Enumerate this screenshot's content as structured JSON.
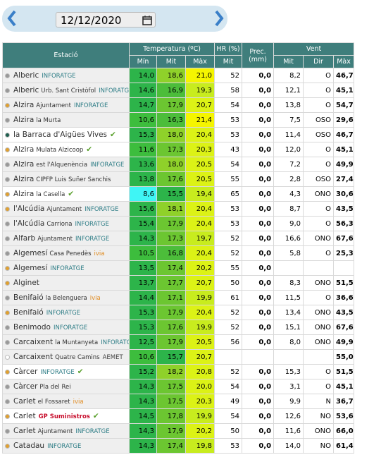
{
  "header": {
    "date": "12/12/2020"
  },
  "table": {
    "columns": [
      "Estació",
      "Temperatura (ºC)",
      "HR (%)",
      "Prec. (mm)",
      "Vent"
    ],
    "subcolumns": [
      "Mín",
      "Mit",
      "Màx",
      "Mit",
      "Mit",
      "Dir",
      "Màx"
    ],
    "rows": [
      {
        "name": "Alberic",
        "tag": "INFORATGE",
        "dot": "#999999",
        "cells": [
          "14,0",
          "18,6",
          "21,0",
          "52",
          "0,0",
          "8,2",
          "O",
          "46,7"
        ]
      },
      {
        "name": "Alberic",
        "sub": "Urb. Sant Cristòfol",
        "tag": "INFORATGE",
        "dot": "#999999",
        "cells": [
          "14,6",
          "16,9",
          "19,3",
          "58",
          "0,0",
          "12,1",
          "O",
          "45,1"
        ]
      },
      {
        "name": "Alzira",
        "sub": "Ajuntament",
        "tag": "INFORATGE",
        "dot": "#e0a030",
        "cells": [
          "14,7",
          "17,9",
          "20,7",
          "54",
          "0,0",
          "13,8",
          "O",
          "54,7"
        ]
      },
      {
        "name": "Alzira",
        "sub": "la Murta",
        "dot": "#999999",
        "cells": [
          "10,6",
          "16,3",
          "21,4",
          "53",
          "0,0",
          "7,5",
          "OSO",
          "29,6"
        ]
      },
      {
        "name": "la Barraca d'Aigües Vives",
        "check": true,
        "dot": "#1f5f4f",
        "cells": [
          "15,3",
          "18,0",
          "20,4",
          "53",
          "0,0",
          "11,4",
          "OSO",
          "46,7"
        ]
      },
      {
        "name": "Alzira",
        "sub": "Mulata Alzicoop",
        "check": true,
        "dot": "#e0a030",
        "cells": [
          "11,6",
          "17,3",
          "20,3",
          "43",
          "0,0",
          "12,0",
          "O",
          "45,1"
        ]
      },
      {
        "name": "Alzira",
        "sub": "est l'Alquenència",
        "tag": "INFORATGE",
        "dot": "#999999",
        "cells": [
          "13,6",
          "18,0",
          "20,5",
          "54",
          "0,0",
          "7,2",
          "O",
          "49,9"
        ]
      },
      {
        "name": "Alzira",
        "sub": "CIPFP Luis Suñer Sanchis",
        "dot": "#999999",
        "cells": [
          "13,8",
          "17,6",
          "20,5",
          "55",
          "0,0",
          "2,8",
          "OSO",
          "27,4"
        ]
      },
      {
        "name": "Alzira",
        "sub": "la Casella",
        "check": true,
        "dot": "#e0a030",
        "cells": [
          "8,6",
          "15,5",
          "19,4",
          "65",
          "0,0",
          "4,3",
          "ONO",
          "30,6"
        ]
      },
      {
        "name": "l'Alcúdia",
        "sub": "Ajuntament",
        "tag": "INFORATGE",
        "dot": "#e0a030",
        "cells": [
          "15,6",
          "18,1",
          "20,4",
          "53",
          "0,0",
          "8,7",
          "O",
          "43,5"
        ]
      },
      {
        "name": "l'Alcúdia",
        "sub": "Carriona",
        "tag": "INFORATGE",
        "dot": "#999999",
        "cells": [
          "15,4",
          "17,9",
          "20,4",
          "53",
          "0,0",
          "9,0",
          "O",
          "56,3"
        ]
      },
      {
        "name": "Alfarb",
        "sub": "Ajuntament",
        "tag": "INFORATGE",
        "dot": "#999999",
        "cells": [
          "14,3",
          "17,3",
          "19,7",
          "52",
          "0,0",
          "16,6",
          "ONO",
          "67,6"
        ]
      },
      {
        "name": "Algemesí",
        "sub": "Casa Penedès",
        "tag": "ivia",
        "dot": "#999999",
        "cells": [
          "10,5",
          "16,8",
          "20,4",
          "52",
          "0,0",
          "5,8",
          "O",
          "25,3"
        ]
      },
      {
        "name": "Algemesí",
        "tag": "INFORATGE",
        "dot": "#e0a030",
        "cells": [
          "13,5",
          "17,4",
          "20,2",
          "55",
          "0,0",
          null,
          null,
          null
        ]
      },
      {
        "name": "Alginet",
        "dot": "#e0a030",
        "cells": [
          "13,7",
          "17,7",
          "20,7",
          "50",
          "0,0",
          "8,3",
          "ONO",
          "51,5"
        ]
      },
      {
        "name": "Benifaió",
        "sub": "la Belenguera",
        "tag": "ivia",
        "dot": "#999999",
        "cells": [
          "14,4",
          "17,1",
          "19,9",
          "61",
          "0,0",
          "11,5",
          "O",
          "36,6"
        ]
      },
      {
        "name": "Benifaió",
        "tag": "INFORATGE",
        "dot": "#e0a030",
        "cells": [
          "15,3",
          "17,9",
          "20,4",
          "52",
          "0,0",
          "13,4",
          "ONO",
          "43,5"
        ]
      },
      {
        "name": "Benimodo",
        "tag": "INFORATGE",
        "dot": "#999999",
        "cells": [
          "15,3",
          "17,6",
          "19,9",
          "52",
          "0,0",
          "15,1",
          "ONO",
          "67,6"
        ]
      },
      {
        "name": "Carcaixent",
        "sub": "la Muntanyeta",
        "tag": "INFORATGE",
        "dot": "#999999",
        "cells": [
          "12,5",
          "17,9",
          "20,5",
          "56",
          "0,0",
          "8,0",
          "ONO",
          "49,9"
        ]
      },
      {
        "name": "Carcaixent",
        "sub": "Quatre Camins",
        "tag": "AEMET",
        "dot": "#ffffff",
        "cells": [
          "10,6",
          "15,7",
          "20,7",
          null,
          null,
          null,
          null,
          "55,0"
        ]
      },
      {
        "name": "Càrcer",
        "tag": "INFORATGE",
        "check": true,
        "dot": "#e0a030",
        "cells": [
          "15,2",
          "18,2",
          "20,8",
          "52",
          "0,0",
          "15,3",
          "O",
          "51,5"
        ]
      },
      {
        "name": "Càrcer",
        "sub": "Pla del Rei",
        "dot": "#999999",
        "cells": [
          "14,3",
          "17,5",
          "20,0",
          "54",
          "0,0",
          "3,1",
          "O",
          "45,1"
        ]
      },
      {
        "name": "Carlet",
        "sub": "el Fossaret",
        "tag": "ivia",
        "dot": "#999999",
        "cells": [
          "14,3",
          "17,5",
          "20,3",
          "49",
          "0,0",
          "9,9",
          "N",
          "36,7"
        ]
      },
      {
        "name": "Carlet",
        "tag": "GP Suministros",
        "check": true,
        "dot": "#e0a030",
        "cells": [
          "14,5",
          "17,8",
          "19,9",
          "54",
          "0,0",
          "12,6",
          "NO",
          "53,6"
        ]
      },
      {
        "name": "Carlet",
        "sub": "Ajuntament",
        "tag": "INFORATGE",
        "dot": "#999999",
        "cells": [
          "14,3",
          "17,9",
          "20,2",
          "50",
          "0,0",
          "11,6",
          "ONO",
          "66,0"
        ]
      },
      {
        "name": "Catadau",
        "tag": "INFORATGE",
        "dot": "#e0a030",
        "cells": [
          "14,3",
          "17,4",
          "19,8",
          "53",
          "0,0",
          "14,0",
          "NO",
          "61,4"
        ]
      }
    ]
  }
}
